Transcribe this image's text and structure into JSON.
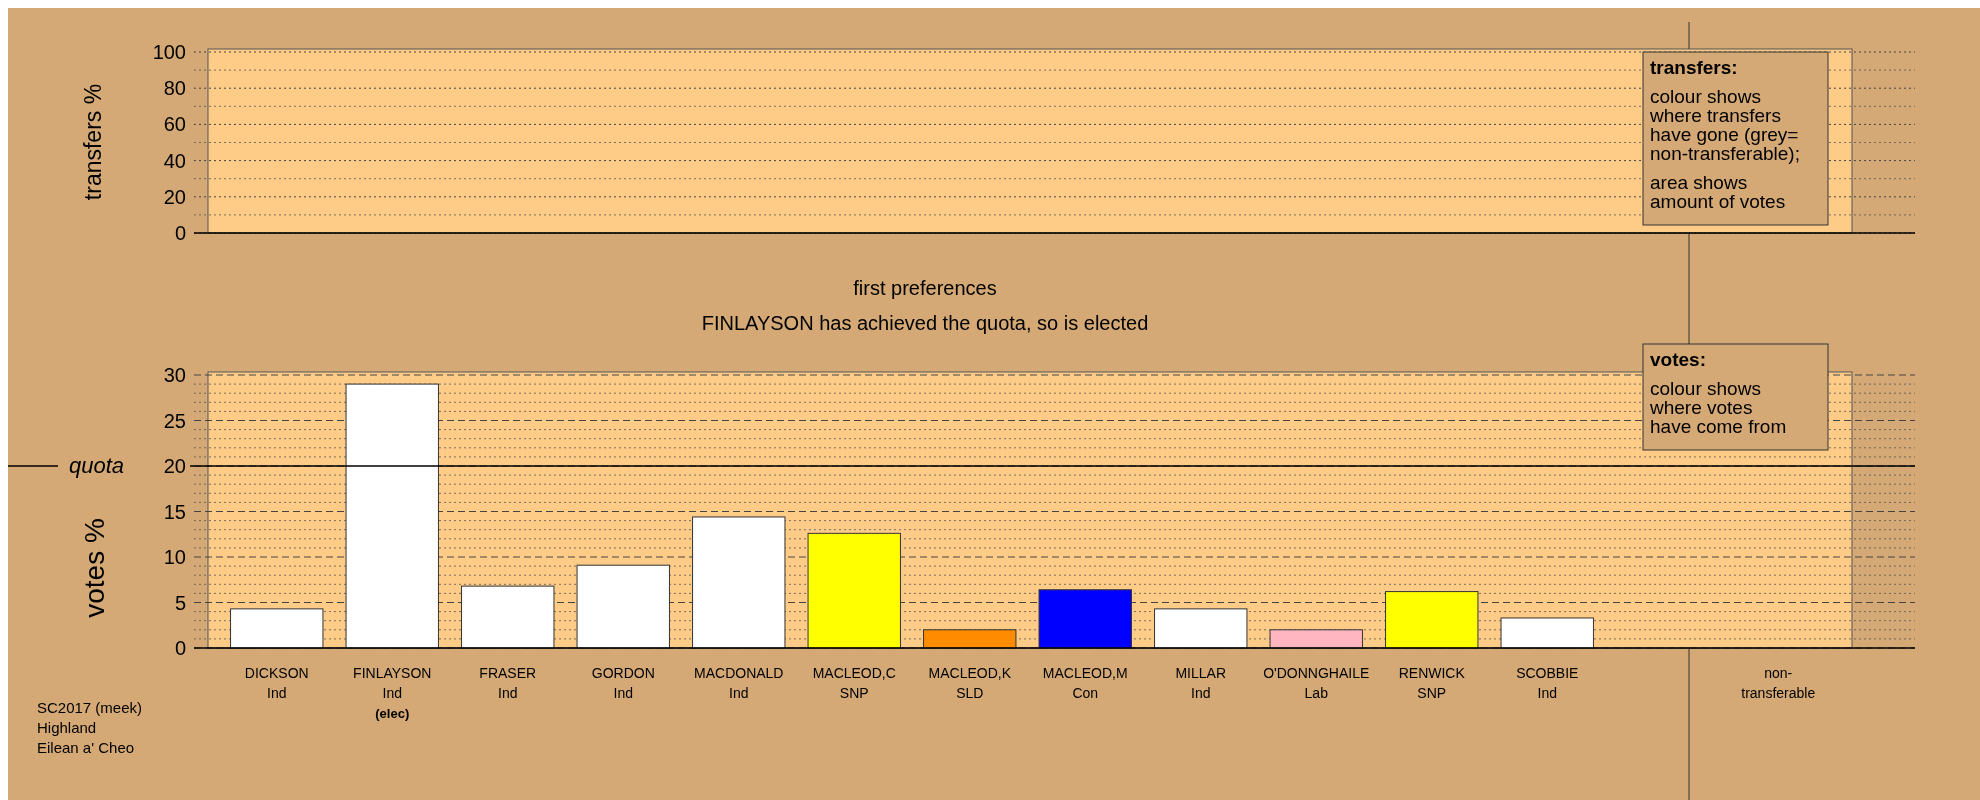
{
  "chart_data": [
    {
      "type": "bar",
      "ylabel": "transfers %",
      "categories": [
        null,
        null,
        null,
        null,
        null,
        null,
        null,
        null,
        null,
        null,
        null,
        null,
        null,
        null
      ],
      "values": [
        null,
        null,
        null,
        null,
        null,
        null,
        null,
        null,
        null,
        null,
        null,
        null,
        null,
        null
      ],
      "ylim": [
        0,
        100
      ],
      "yticks": [
        0,
        20,
        40,
        60,
        80,
        100
      ],
      "grid": "y",
      "tick_labels": "y",
      "annotations": [
        "transfers:",
        "colour shows\nwhere transfers\nhave gone (grey=\nnon-transferable);",
        "area shows\namount of votes"
      ]
    },
    {
      "type": "bar",
      "title": "first preferences",
      "subtitle": "FINLAYSON has achieved the quota, so is elected",
      "ylabel": "votes %",
      "categories": [
        "DICKSON\nInd",
        "FINLAYSON\nInd\n(elec)",
        "FRASER\nInd",
        "GORDON\nInd",
        "MACDONALD\nInd",
        "MACLEOD,C\nSNP",
        "MACLEOD,K\nSLD",
        "MACLEOD,M\nCon",
        "MILLAR\nInd",
        "O'DONNGHAILE\nLab",
        "RENWICK\nSNP",
        "SCOBBIE\nInd",
        null,
        "non-\ntransferable"
      ],
      "values": [
        4.3,
        29.0,
        6.8,
        9.1,
        14.4,
        12.6,
        2.0,
        6.4,
        4.3,
        2.0,
        6.2,
        3.3,
        null,
        null
      ],
      "colors": [
        "#ffffff",
        "#ffffff",
        "#ffffff",
        "#ffffff",
        "#ffffff",
        "#ffff00",
        "#ff8c00",
        "#0000ff",
        "#ffffff",
        "#ffb6c1",
        "#ffff00",
        "#ffffff",
        null,
        null
      ],
      "ylim": [
        0,
        30
      ],
      "yticks": [
        0,
        5,
        10,
        15,
        20,
        25,
        30
      ],
      "grid": "y",
      "ref_lines": [
        {
          "axis": "y",
          "value": 20,
          "label": "quota"
        }
      ],
      "annotations": [
        "votes:",
        "colour shows\nwhere votes\nhave come from",
        "SC2017 (meek)\nHighland\nEilean a' Cheo"
      ]
    }
  ]
}
